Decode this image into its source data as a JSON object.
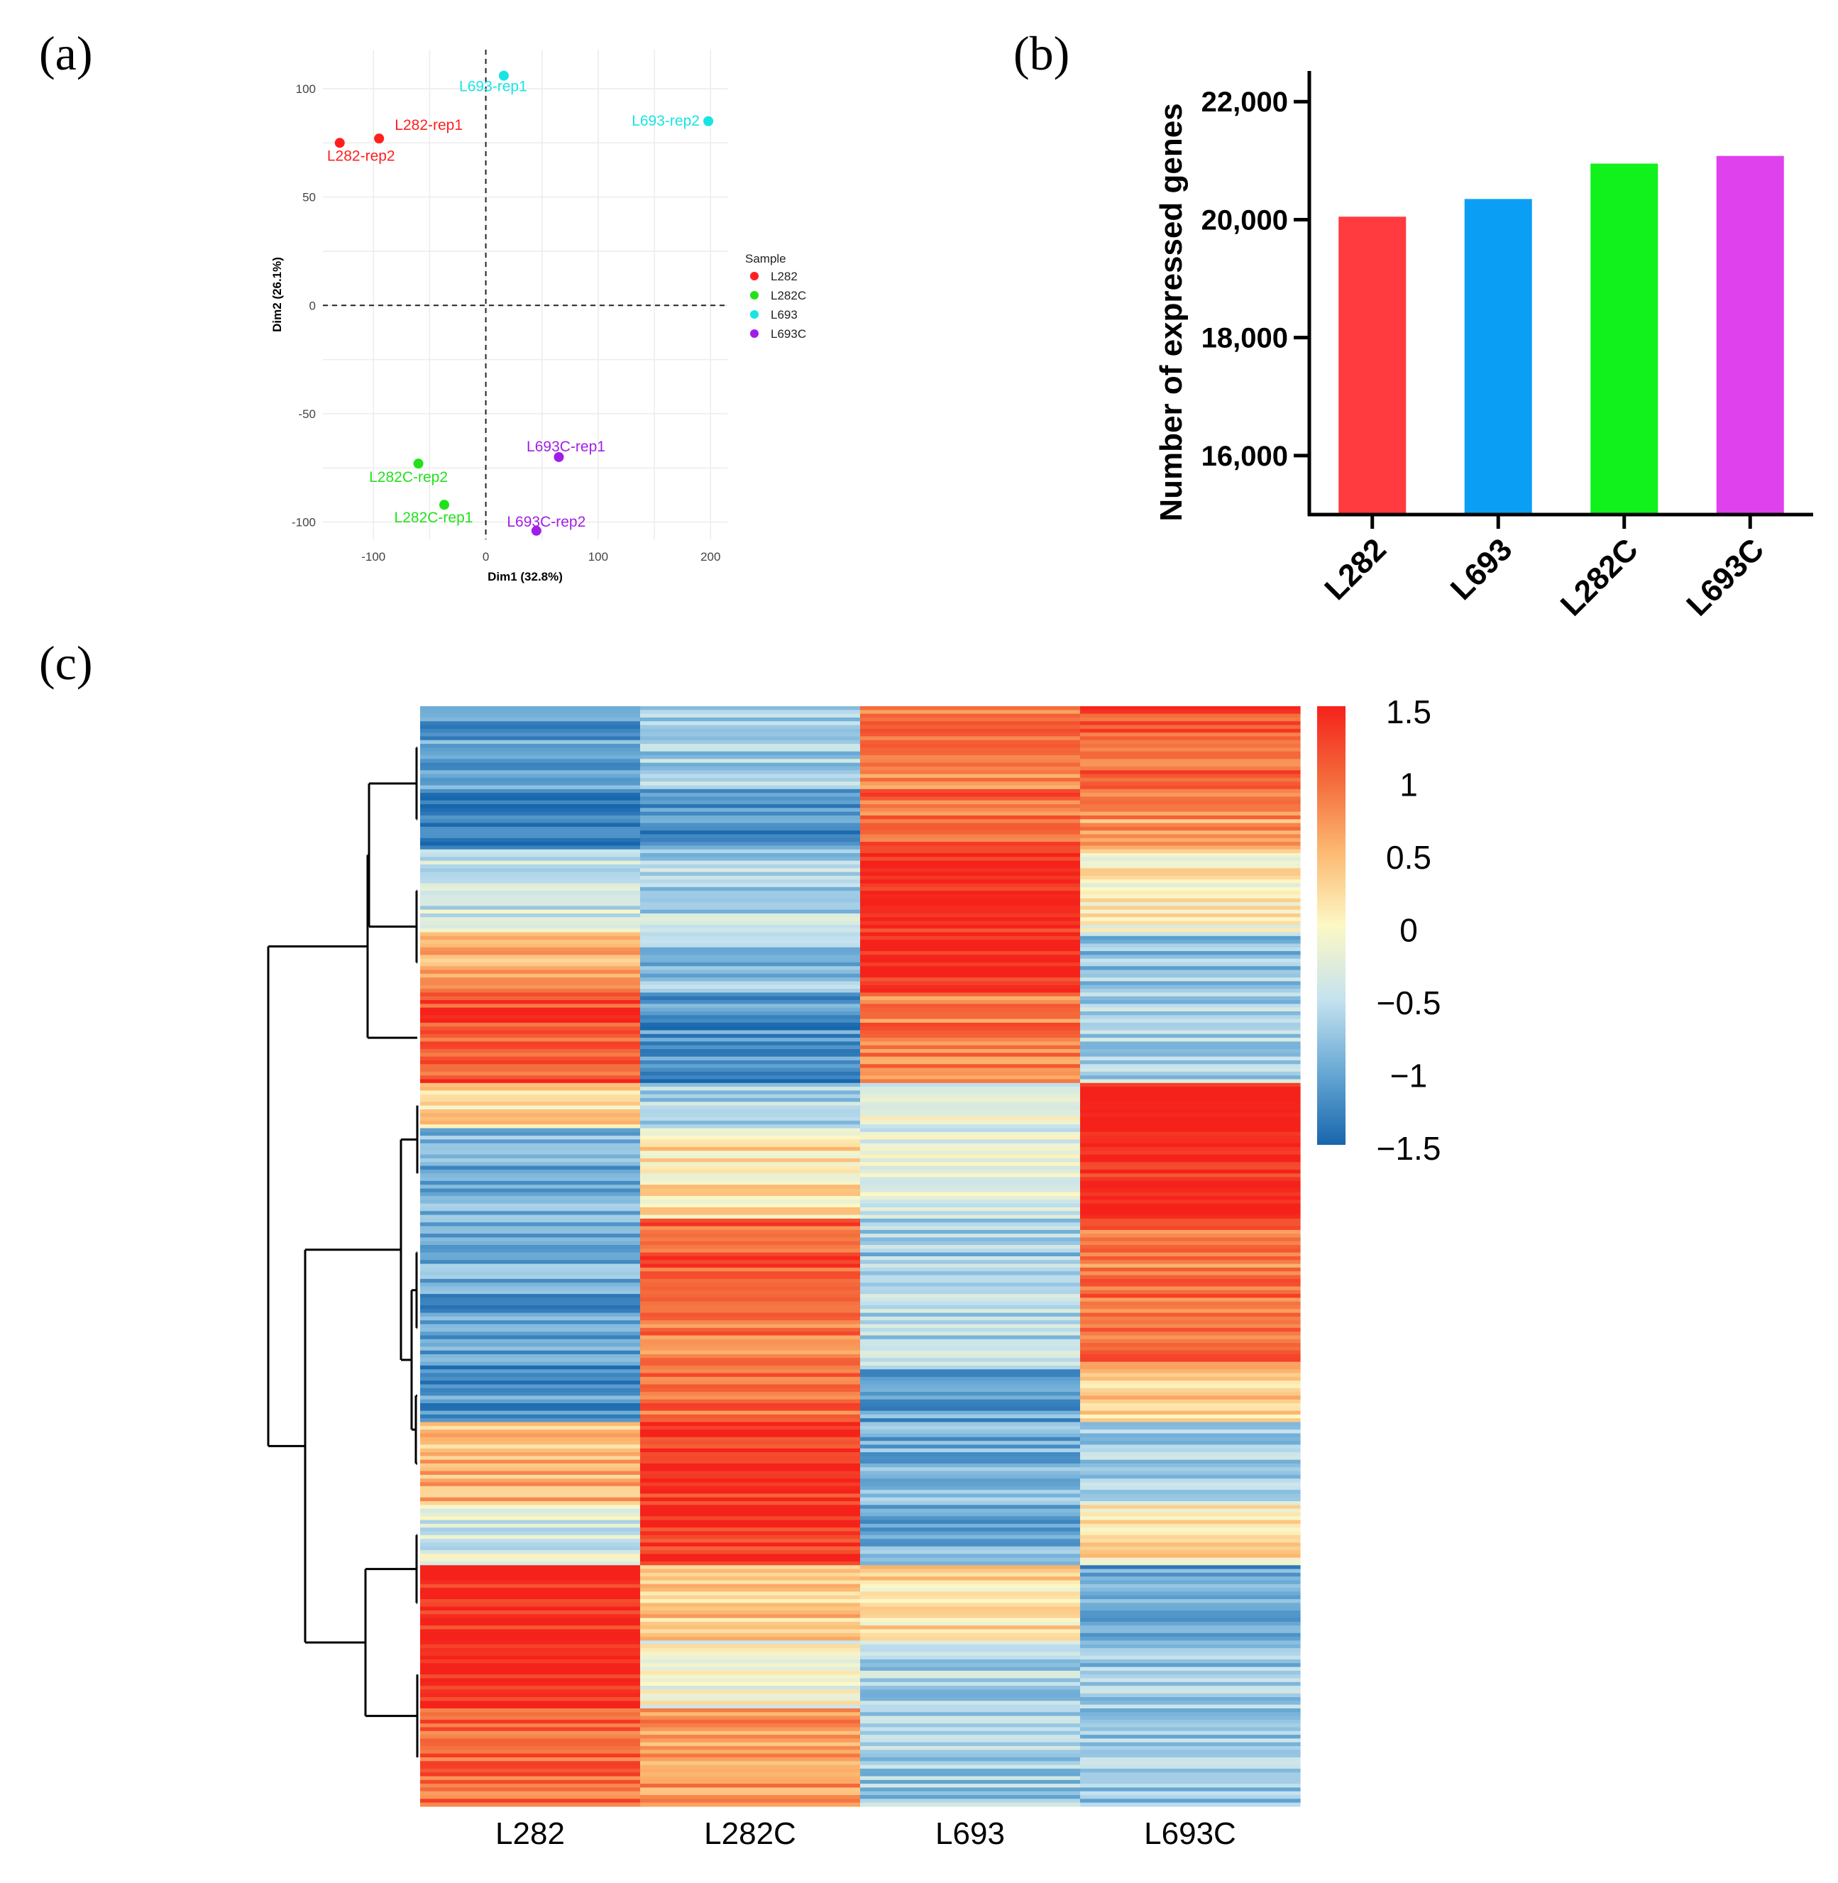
{
  "panels": {
    "a": "(a)",
    "b": "(b)",
    "c": "(c)"
  },
  "chart_data": [
    {
      "type": "scatter",
      "panel": "(a)",
      "xlabel": "Dim1 (32.8%)",
      "ylabel": "Dim2 (26.1%)",
      "xlim": [
        -145,
        215
      ],
      "ylim": [
        -108,
        118
      ],
      "xticks": [
        -100,
        0,
        100,
        200
      ],
      "yticks": [
        -100,
        -50,
        0,
        50,
        100
      ],
      "legend_title": "Sample",
      "legend": [
        {
          "name": "L282",
          "color": "#ff1f1f"
        },
        {
          "name": "L282C",
          "color": "#22e01a"
        },
        {
          "name": "L693",
          "color": "#18e4e4"
        },
        {
          "name": "L693C",
          "color": "#a11ee6"
        }
      ],
      "points": [
        {
          "label": "L282-rep1",
          "group": "L282",
          "x": -95,
          "y": 77
        },
        {
          "label": "L282-rep2",
          "group": "L282",
          "x": -130,
          "y": 75
        },
        {
          "label": "L693-rep1",
          "group": "L693",
          "x": 16,
          "y": 106
        },
        {
          "label": "L693-rep2",
          "group": "L693",
          "x": 198,
          "y": 85
        },
        {
          "label": "L282C-rep2",
          "group": "L282C",
          "x": -60,
          "y": -73
        },
        {
          "label": "L282C-rep1",
          "group": "L282C",
          "x": -37,
          "y": -92
        },
        {
          "label": "L693C-rep1",
          "group": "L693C",
          "x": 65,
          "y": -70
        },
        {
          "label": "L693C-rep2",
          "group": "L693C",
          "x": 45,
          "y": -104
        }
      ]
    },
    {
      "type": "bar",
      "panel": "(b)",
      "ylabel": "Number of expressed genes",
      "categories": [
        "L282",
        "L693",
        "L282C",
        "L693C"
      ],
      "values": [
        20050,
        20350,
        20950,
        21080
      ],
      "colors": [
        "#ff3b3f",
        "#0a9ff5",
        "#11f11b",
        "#df41ec"
      ],
      "ylim": [
        15000,
        22400
      ],
      "yticks": [
        16000,
        18000,
        20000,
        22000
      ],
      "ytick_labels": [
        "16,000",
        "18,000",
        "20,000",
        "22,000"
      ]
    },
    {
      "type": "heatmap",
      "panel": "(c)",
      "columns": [
        "L282",
        "L282C",
        "L693",
        "L693C"
      ],
      "colorbar_ticks": [
        1.5,
        1,
        0.5,
        0,
        -0.5,
        -1,
        -1.5
      ],
      "colorbar_labels": [
        "1.5",
        "1",
        "0.5",
        "0",
        "−0.5",
        "−1",
        "−1.5"
      ],
      "vmin": -1.5,
      "vmax": 1.5,
      "clusters": [
        {
          "rows": 22,
          "values": [
            -1.1,
            -0.7,
            0.9,
            1.1
          ]
        },
        {
          "rows": 16,
          "values": [
            -1.3,
            -1.2,
            1.0,
            0.7
          ]
        },
        {
          "rows": 22,
          "values": [
            -0.4,
            -0.6,
            1.5,
            0.0
          ]
        },
        {
          "rows": 16,
          "values": [
            0.6,
            -0.8,
            1.5,
            -0.8
          ]
        },
        {
          "rows": 24,
          "values": [
            1.2,
            -1.2,
            0.9,
            -0.6
          ]
        },
        {
          "rows": 12,
          "values": [
            0.2,
            -0.6,
            -0.2,
            1.5
          ]
        },
        {
          "rows": 24,
          "values": [
            -0.9,
            0.2,
            -0.3,
            1.5
          ]
        },
        {
          "rows": 18,
          "values": [
            -1.0,
            1.1,
            -0.7,
            0.9
          ]
        },
        {
          "rows": 22,
          "values": [
            -1.1,
            0.9,
            -0.6,
            1.0
          ]
        },
        {
          "rows": 14,
          "values": [
            -1.1,
            1.0,
            -1.0,
            0.3
          ]
        },
        {
          "rows": 22,
          "values": [
            0.5,
            1.4,
            -0.9,
            -0.6
          ]
        },
        {
          "rows": 16,
          "values": [
            -0.3,
            1.4,
            -1.0,
            0.2
          ]
        },
        {
          "rows": 20,
          "values": [
            1.5,
            0.4,
            0.2,
            -1.1
          ]
        },
        {
          "rows": 18,
          "values": [
            1.5,
            -0.1,
            -0.6,
            -0.7
          ]
        },
        {
          "rows": 26,
          "values": [
            1.0,
            0.7,
            -0.7,
            -0.7
          ]
        }
      ]
    }
  ]
}
